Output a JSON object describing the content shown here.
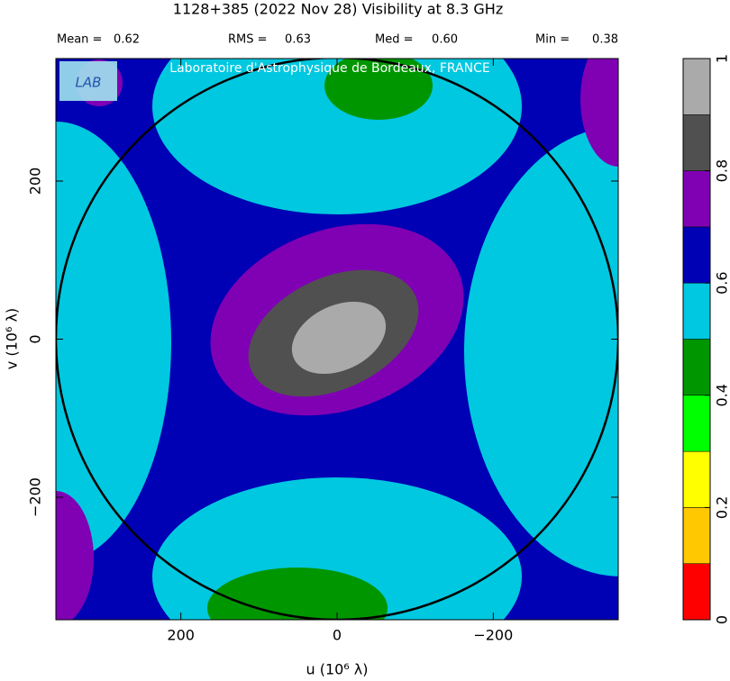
{
  "chart_data": {
    "type": "contour",
    "title": "1128+385  (2022 Nov 28)   Visibility at  8.3 GHz",
    "x_label": "u  (10⁶ λ)",
    "y_label": "v  (10⁶ λ)",
    "annotation": "Laboratoire d'Astrophysique de Bordeaux, FRANCE",
    "logo_text": "LAB",
    "stats": {
      "names": [
        "Mean =",
        "RMS =",
        "Med =",
        "Min ="
      ],
      "values": [
        0.62,
        0.63,
        0.6,
        0.38
      ],
      "value_labels": [
        "0.62",
        "0.63",
        "0.60",
        "0.38"
      ]
    },
    "xlim": [
      360,
      -360
    ],
    "xticks": [
      200,
      0,
      {
        "value": -200,
        "label": "−200"
      }
    ],
    "ylim": [
      -355,
      355
    ],
    "yticks": [
      {
        "value": -200,
        "label": "−200"
      },
      0,
      200
    ],
    "colorbar": {
      "bins": [
        0,
        0.1,
        0.2,
        0.3,
        0.4,
        0.5,
        0.6,
        0.7,
        0.8,
        0.9,
        1
      ],
      "colors": [
        "#ff0000",
        "#ffc800",
        "#ffff00",
        "#00ff00",
        "#009600",
        "#00c8e0",
        "#0000b4",
        "#8000b4",
        "#505050",
        "#aaaaaa"
      ],
      "ticks": [
        0,
        0.2,
        0.4,
        0.6,
        0.8,
        1
      ]
    }
  }
}
